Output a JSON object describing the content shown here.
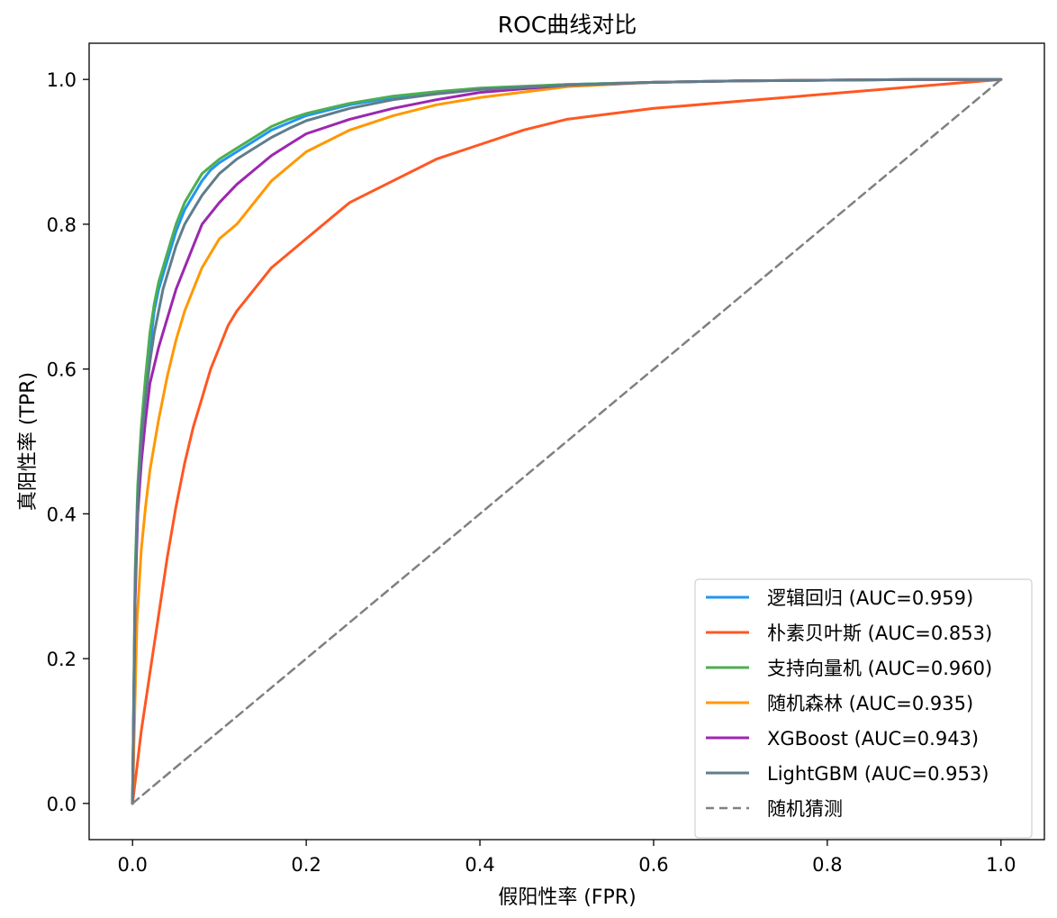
{
  "chart_data": {
    "type": "line",
    "title": "ROC曲线对比",
    "xlabel": "假阳性率 (FPR)",
    "ylabel": "真阳性率 (TPR)",
    "xlim": [
      -0.05,
      1.05
    ],
    "ylim": [
      -0.05,
      1.05
    ],
    "xticks": [
      "0.0",
      "0.2",
      "0.4",
      "0.6",
      "0.8",
      "1.0"
    ],
    "yticks": [
      "0.0",
      "0.2",
      "0.4",
      "0.6",
      "0.8",
      "1.0"
    ],
    "grid": false,
    "legend_position": "lower-right",
    "series": [
      {
        "name": "逻辑回归 (AUC=0.959)",
        "color": "#2196F3",
        "style": "solid",
        "x": [
          0,
          0.003,
          0.006,
          0.01,
          0.015,
          0.02,
          0.025,
          0.03,
          0.035,
          0.04,
          0.05,
          0.06,
          0.07,
          0.08,
          0.09,
          0.1,
          0.12,
          0.14,
          0.16,
          0.18,
          0.2,
          0.25,
          0.3,
          0.35,
          0.4,
          0.5,
          0.6,
          0.7,
          0.8,
          0.9,
          1.0
        ],
        "y": [
          0,
          0.3,
          0.42,
          0.5,
          0.57,
          0.63,
          0.68,
          0.71,
          0.73,
          0.75,
          0.79,
          0.82,
          0.84,
          0.86,
          0.875,
          0.885,
          0.9,
          0.915,
          0.93,
          0.94,
          0.95,
          0.965,
          0.975,
          0.982,
          0.987,
          0.993,
          0.996,
          0.998,
          0.999,
          1.0,
          1.0
        ]
      },
      {
        "name": "朴素贝叶斯 (AUC=0.853)",
        "color": "#FF5722",
        "style": "solid",
        "x": [
          0,
          0.005,
          0.01,
          0.02,
          0.03,
          0.04,
          0.05,
          0.06,
          0.07,
          0.08,
          0.09,
          0.1,
          0.11,
          0.12,
          0.14,
          0.16,
          0.18,
          0.2,
          0.22,
          0.25,
          0.3,
          0.35,
          0.4,
          0.45,
          0.5,
          0.6,
          0.7,
          0.8,
          0.9,
          1.0
        ],
        "y": [
          0,
          0.05,
          0.1,
          0.18,
          0.26,
          0.34,
          0.41,
          0.47,
          0.52,
          0.56,
          0.6,
          0.63,
          0.66,
          0.68,
          0.71,
          0.74,
          0.76,
          0.78,
          0.8,
          0.83,
          0.86,
          0.89,
          0.91,
          0.93,
          0.945,
          0.96,
          0.97,
          0.98,
          0.99,
          1.0
        ]
      },
      {
        "name": "支持向量机 (AUC=0.960)",
        "color": "#4CAF50",
        "style": "solid",
        "x": [
          0,
          0.003,
          0.006,
          0.01,
          0.015,
          0.02,
          0.025,
          0.03,
          0.035,
          0.04,
          0.05,
          0.06,
          0.07,
          0.08,
          0.09,
          0.1,
          0.12,
          0.14,
          0.16,
          0.18,
          0.2,
          0.25,
          0.3,
          0.35,
          0.4,
          0.5,
          0.6,
          0.7,
          0.8,
          0.9,
          1.0
        ],
        "y": [
          0,
          0.32,
          0.44,
          0.52,
          0.59,
          0.65,
          0.69,
          0.72,
          0.74,
          0.76,
          0.8,
          0.83,
          0.85,
          0.87,
          0.88,
          0.89,
          0.905,
          0.92,
          0.935,
          0.945,
          0.953,
          0.967,
          0.977,
          0.983,
          0.988,
          0.993,
          0.996,
          0.998,
          0.999,
          1.0,
          1.0
        ]
      },
      {
        "name": "随机森林 (AUC=0.935)",
        "color": "#FF9800",
        "style": "solid",
        "x": [
          0,
          0.005,
          0.01,
          0.015,
          0.02,
          0.03,
          0.04,
          0.05,
          0.06,
          0.07,
          0.08,
          0.09,
          0.1,
          0.12,
          0.14,
          0.16,
          0.18,
          0.2,
          0.25,
          0.3,
          0.35,
          0.4,
          0.5,
          0.6,
          0.7,
          0.8,
          0.9,
          1.0
        ],
        "y": [
          0,
          0.25,
          0.35,
          0.41,
          0.46,
          0.53,
          0.59,
          0.64,
          0.68,
          0.71,
          0.74,
          0.76,
          0.78,
          0.8,
          0.83,
          0.86,
          0.88,
          0.9,
          0.93,
          0.95,
          0.965,
          0.975,
          0.99,
          0.996,
          0.998,
          0.999,
          1.0,
          1.0
        ]
      },
      {
        "name": "XGBoost (AUC=0.943)",
        "color": "#9C27B0",
        "style": "solid",
        "x": [
          0,
          0.003,
          0.006,
          0.01,
          0.015,
          0.02,
          0.03,
          0.04,
          0.05,
          0.06,
          0.07,
          0.08,
          0.09,
          0.1,
          0.12,
          0.14,
          0.16,
          0.18,
          0.2,
          0.25,
          0.3,
          0.35,
          0.4,
          0.5,
          0.6,
          0.7,
          0.8,
          0.9,
          1.0
        ],
        "y": [
          0,
          0.28,
          0.4,
          0.47,
          0.53,
          0.58,
          0.63,
          0.67,
          0.71,
          0.74,
          0.77,
          0.8,
          0.815,
          0.83,
          0.855,
          0.875,
          0.895,
          0.91,
          0.925,
          0.945,
          0.96,
          0.972,
          0.982,
          0.992,
          0.996,
          0.998,
          0.999,
          1.0,
          1.0
        ]
      },
      {
        "name": "LightGBM (AUC=0.953)",
        "color": "#607D8B",
        "style": "solid",
        "x": [
          0,
          0.003,
          0.006,
          0.01,
          0.015,
          0.02,
          0.025,
          0.03,
          0.035,
          0.04,
          0.05,
          0.06,
          0.07,
          0.08,
          0.09,
          0.1,
          0.12,
          0.14,
          0.16,
          0.18,
          0.2,
          0.25,
          0.3,
          0.35,
          0.4,
          0.5,
          0.6,
          0.7,
          0.8,
          0.9,
          1.0
        ],
        "y": [
          0,
          0.3,
          0.42,
          0.5,
          0.56,
          0.61,
          0.65,
          0.68,
          0.71,
          0.73,
          0.77,
          0.8,
          0.82,
          0.84,
          0.855,
          0.87,
          0.89,
          0.905,
          0.92,
          0.932,
          0.943,
          0.96,
          0.972,
          0.98,
          0.986,
          0.992,
          0.996,
          0.998,
          0.999,
          1.0,
          1.0
        ]
      },
      {
        "name": "随机猜测",
        "color": "#808080",
        "style": "dashed",
        "x": [
          0,
          1
        ],
        "y": [
          0,
          1
        ]
      }
    ]
  }
}
